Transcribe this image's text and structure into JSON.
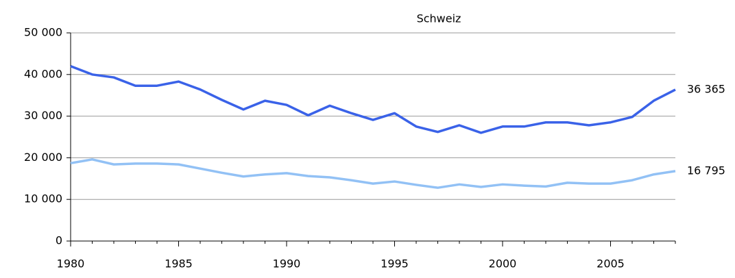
{
  "chart_data": {
    "type": "line",
    "title": "Schweiz",
    "x": [
      1980,
      1981,
      1982,
      1983,
      1984,
      1985,
      1986,
      1987,
      1988,
      1989,
      1990,
      1991,
      1992,
      1993,
      1994,
      1995,
      1996,
      1997,
      1998,
      1999,
      2000,
      2001,
      2002,
      2003,
      2004,
      2005,
      2006,
      2007,
      2008
    ],
    "series": [
      {
        "color": "#3a62e8",
        "values": [
          42000,
          40000,
          39300,
          37300,
          37300,
          38300,
          36400,
          33900,
          31600,
          33700,
          32700,
          30200,
          32500,
          30700,
          29100,
          30700,
          27500,
          26200,
          27800,
          26000,
          27500,
          27500,
          28500,
          28500,
          27800,
          28500,
          29800,
          33700,
          36365
        ],
        "value_labels": [
          null,
          null,
          null,
          null,
          null,
          null,
          null,
          null,
          null,
          null,
          null,
          null,
          null,
          null,
          null,
          null,
          null,
          null,
          null,
          null,
          null,
          null,
          null,
          null,
          null,
          null,
          null,
          null,
          "36 365"
        ]
      },
      {
        "color": "#92c1f5",
        "values": [
          18700,
          19600,
          18400,
          18600,
          18600,
          18400,
          17400,
          16400,
          15500,
          16000,
          16300,
          15600,
          15300,
          14600,
          13800,
          14300,
          13500,
          12800,
          13600,
          13000,
          13600,
          13300,
          13100,
          14000,
          13800,
          13800,
          14600,
          16000,
          16795
        ],
        "value_labels": [
          null,
          null,
          null,
          null,
          null,
          null,
          null,
          null,
          null,
          null,
          null,
          null,
          null,
          null,
          null,
          null,
          null,
          null,
          null,
          null,
          null,
          null,
          null,
          null,
          null,
          null,
          null,
          null,
          "16 795"
        ]
      }
    ],
    "xlim": [
      1980,
      2008
    ],
    "xticks": [
      1980,
      1985,
      1990,
      1995,
      2000,
      2005
    ],
    "ylim": [
      0,
      50000
    ],
    "yticks": [
      {
        "value": 0,
        "label": "0"
      },
      {
        "value": 10000,
        "label": "10 000"
      },
      {
        "value": 20000,
        "label": "20 000"
      },
      {
        "value": 30000,
        "label": "30 000"
      },
      {
        "value": 40000,
        "label": "40 000"
      },
      {
        "value": 50000,
        "label": "50 000"
      }
    ],
    "grid": true
  }
}
